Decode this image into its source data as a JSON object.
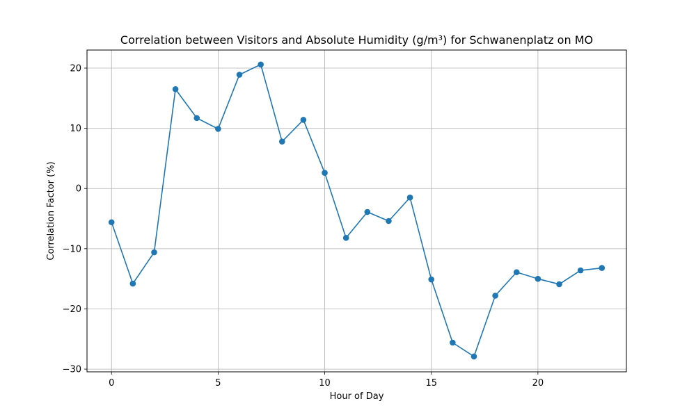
{
  "chart_data": {
    "type": "line",
    "title": "Correlation between Visitors and Absolute Humidity (g/m³) for Schwanenplatz on MO",
    "xlabel": "Hour of Day",
    "ylabel": "Correlation Factor (%)",
    "x": [
      0,
      1,
      2,
      3,
      4,
      5,
      6,
      7,
      8,
      9,
      10,
      11,
      12,
      13,
      14,
      15,
      16,
      17,
      18,
      19,
      20,
      21,
      22,
      23
    ],
    "series": [
      {
        "values": [
          -5.6,
          -15.8,
          -10.6,
          16.5,
          11.7,
          9.9,
          18.9,
          20.6,
          7.8,
          11.4,
          2.6,
          -8.2,
          -3.9,
          -5.4,
          -1.5,
          -15.1,
          -25.6,
          -27.9,
          -17.8,
          -13.9,
          -15.0,
          -15.9,
          -13.6,
          -13.2
        ],
        "color": "#1f77b4"
      }
    ],
    "xlim": [
      -1.15,
      24.15
    ],
    "ylim": [
      -30.45,
      23.0
    ],
    "xticks": [
      0,
      5,
      10,
      15,
      20
    ],
    "yticks": [
      -30,
      -20,
      -10,
      0,
      10,
      20
    ],
    "grid": true,
    "marker": "circle"
  }
}
